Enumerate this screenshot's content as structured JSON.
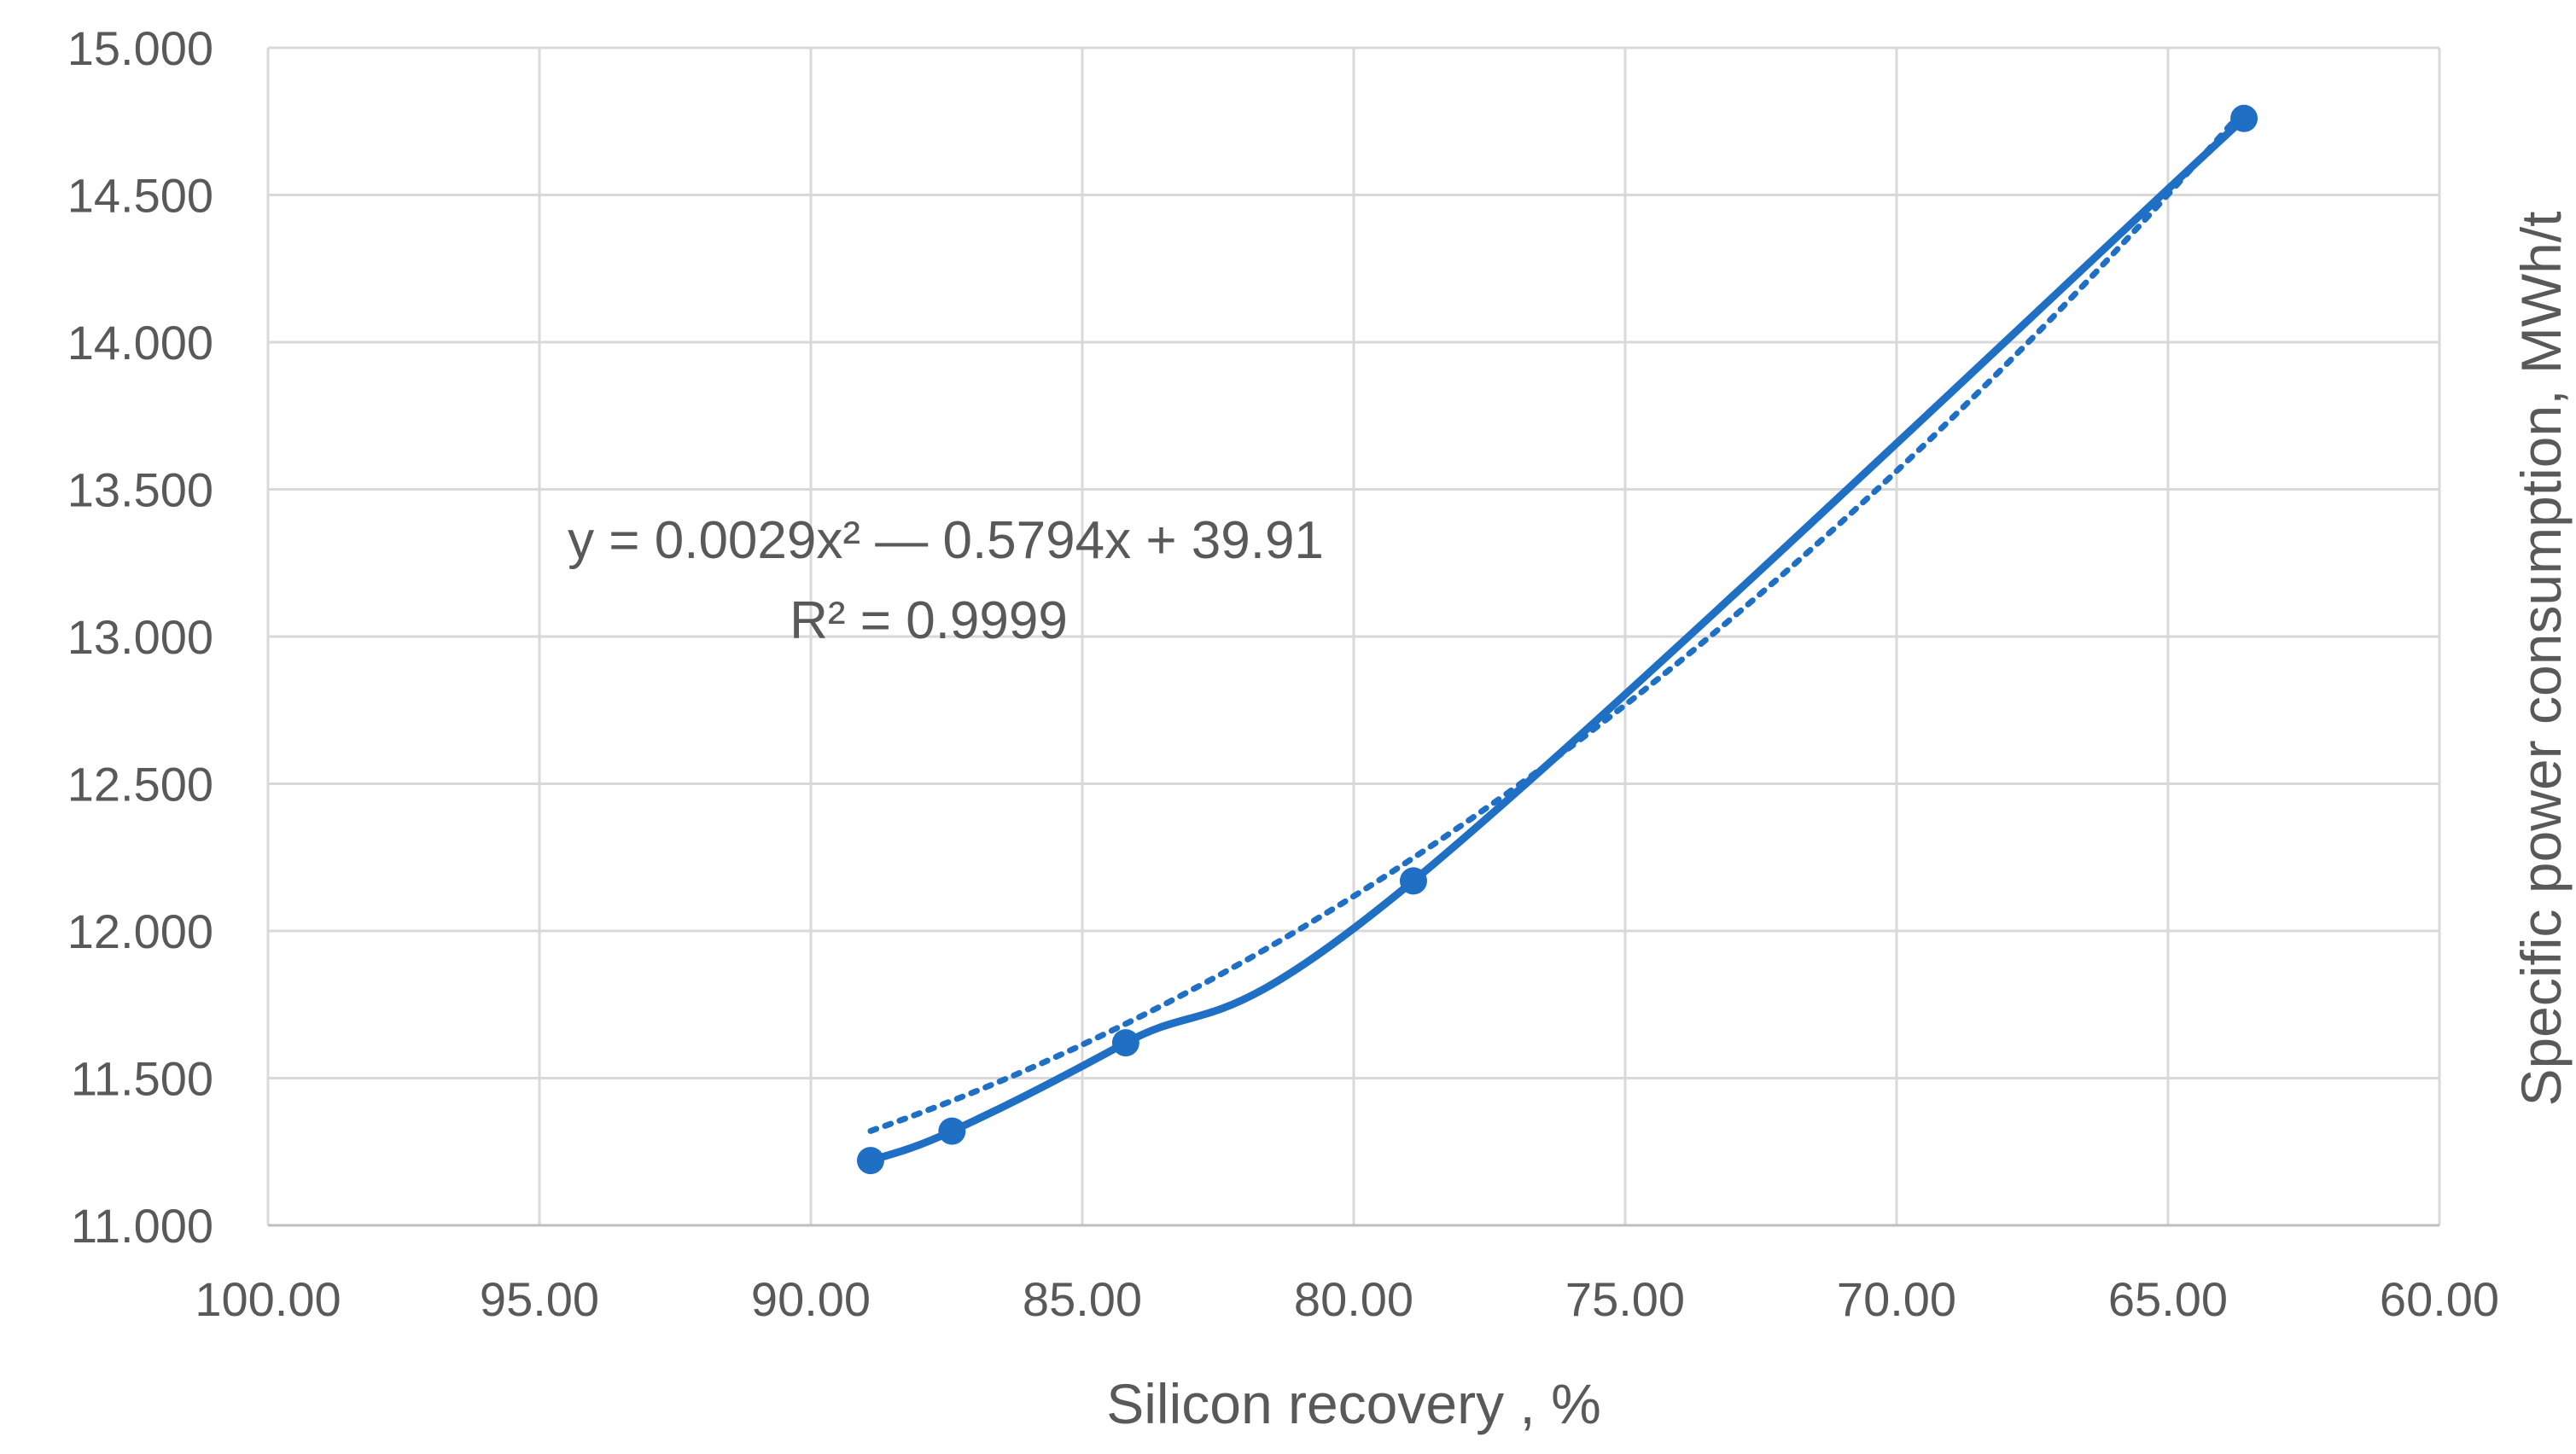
{
  "chart_data": {
    "type": "scatter",
    "title": "",
    "xlabel": "Silicon recovery , %",
    "ylabel": "Specific power consumption, MWh/t",
    "xlim": [
      100,
      60
    ],
    "ylim": [
      11,
      15
    ],
    "x_reversed": true,
    "x_ticks": [
      "100.00",
      "95.00",
      "90.00",
      "85.00",
      "80.00",
      "75.00",
      "70.00",
      "65.00",
      "60.00"
    ],
    "y_ticks": [
      "11.000",
      "11.500",
      "12.000",
      "12.500",
      "13.000",
      "13.500",
      "14.000",
      "14.500",
      "15.000"
    ],
    "grid": true,
    "series": [
      {
        "color": "#1F6FC5",
        "line": "smooth",
        "marker": "circle",
        "points": [
          {
            "x": 88.9,
            "y": 11.22
          },
          {
            "x": 87.4,
            "y": 11.32
          },
          {
            "x": 84.2,
            "y": 11.62
          },
          {
            "x": 78.9,
            "y": 12.17
          },
          {
            "x": 63.6,
            "y": 14.76
          }
        ]
      }
    ],
    "trendline": {
      "type": "polynomial-2",
      "style": "dotted",
      "color": "#1F6FC5",
      "coefficients": [
        0.0029,
        -0.5794,
        39.91
      ],
      "equation": "y = 0.0029x² — 0.5794x + 39.91",
      "r_squared": "R² = 0.9999"
    }
  }
}
